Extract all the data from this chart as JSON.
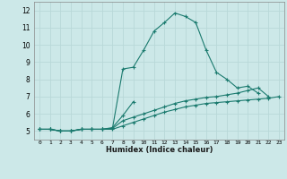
{
  "title": "",
  "xlabel": "Humidex (Indice chaleur)",
  "ylabel": "",
  "xlim": [
    -0.5,
    23.5
  ],
  "ylim": [
    4.5,
    12.5
  ],
  "yticks": [
    5,
    6,
    7,
    8,
    9,
    10,
    11,
    12
  ],
  "xticks": [
    0,
    1,
    2,
    3,
    4,
    5,
    6,
    7,
    8,
    9,
    10,
    11,
    12,
    13,
    14,
    15,
    16,
    17,
    18,
    19,
    20,
    21,
    22,
    23
  ],
  "xtick_labels": [
    "0",
    "1",
    "2",
    "3",
    "4",
    "5",
    "6",
    "7",
    "8",
    "9",
    "10",
    "11",
    "12",
    "13",
    "14",
    "15",
    "16",
    "17",
    "18",
    "19",
    "20",
    "21",
    "22",
    "23"
  ],
  "bg_color": "#cce8e8",
  "grid_color": "#b8d8d8",
  "line_color": "#1a7a6e",
  "lines": [
    {
      "x": [
        0,
        1,
        2,
        3,
        4,
        5,
        6,
        7,
        8,
        9,
        10,
        11,
        12,
        13,
        14,
        15,
        16,
        17,
        18,
        19,
        20,
        21
      ],
      "y": [
        5.1,
        5.1,
        5.0,
        5.0,
        5.1,
        5.1,
        5.1,
        5.15,
        8.6,
        8.7,
        9.7,
        10.8,
        11.3,
        11.85,
        11.65,
        11.3,
        9.7,
        8.4,
        8.0,
        7.5,
        7.6,
        7.2
      ]
    },
    {
      "x": [
        0,
        1,
        2,
        3,
        4,
        5,
        6,
        7,
        8,
        9
      ],
      "y": [
        5.1,
        5.1,
        5.0,
        5.0,
        5.1,
        5.1,
        5.1,
        5.2,
        5.9,
        6.7
      ]
    },
    {
      "x": [
        0,
        1,
        2,
        3,
        4,
        5,
        6,
        7,
        8,
        9,
        10,
        11,
        12,
        13,
        14,
        15,
        16,
        17,
        18,
        19,
        20,
        21,
        22
      ],
      "y": [
        5.1,
        5.1,
        5.0,
        5.0,
        5.1,
        5.1,
        5.1,
        5.15,
        5.6,
        5.8,
        6.0,
        6.2,
        6.4,
        6.6,
        6.75,
        6.85,
        6.95,
        7.0,
        7.1,
        7.2,
        7.35,
        7.5,
        7.0
      ]
    },
    {
      "x": [
        0,
        1,
        2,
        3,
        4,
        5,
        6,
        7,
        8,
        9,
        10,
        11,
        12,
        13,
        14,
        15,
        16,
        17,
        18,
        19,
        20,
        21,
        22,
        23
      ],
      "y": [
        5.1,
        5.1,
        5.0,
        5.0,
        5.1,
        5.1,
        5.1,
        5.1,
        5.3,
        5.5,
        5.7,
        5.9,
        6.1,
        6.25,
        6.4,
        6.5,
        6.6,
        6.65,
        6.7,
        6.75,
        6.8,
        6.85,
        6.9,
        7.0
      ]
    }
  ]
}
